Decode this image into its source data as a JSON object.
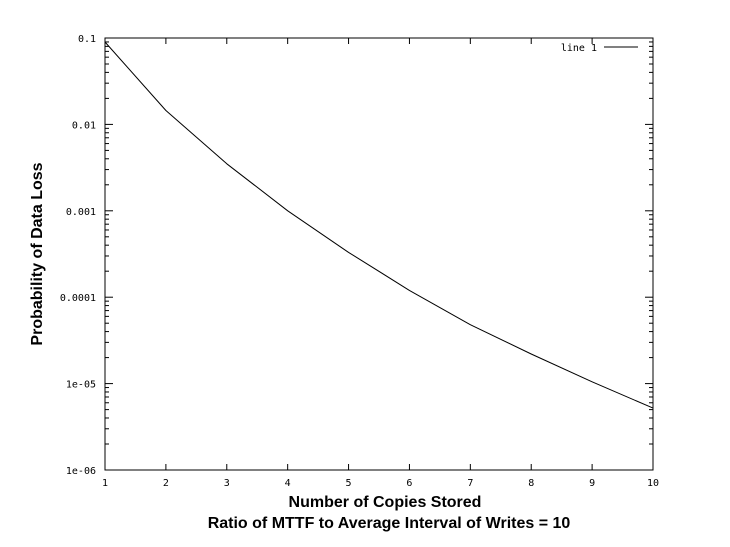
{
  "chart_data": {
    "type": "line",
    "title": "",
    "xlabel": "Number of Copies Stored",
    "xlabel2": "Ratio of MTTF to Average Interval of Writes = 10",
    "ylabel": "Probability of Data Loss",
    "yscale": "log",
    "xlim": [
      1,
      10
    ],
    "ylim": [
      1e-06,
      0.1
    ],
    "grid": false,
    "legend_position": "top-right",
    "x_ticks": [
      "1",
      "2",
      "3",
      "4",
      "5",
      "6",
      "7",
      "8",
      "9",
      "10"
    ],
    "y_ticks": [
      "1e-06",
      "1e-05",
      "0.0001",
      "0.001",
      "0.01",
      "0.1"
    ],
    "series": [
      {
        "name": "line 1",
        "color": "#000000",
        "x": [
          1,
          2,
          3,
          4,
          5,
          6,
          7,
          8,
          9,
          10
        ],
        "y": [
          0.09,
          0.0145,
          0.0035,
          0.001,
          0.00033,
          0.00012,
          4.8e-05,
          2.2e-05,
          1.05e-05,
          5.2e-06
        ]
      }
    ]
  }
}
